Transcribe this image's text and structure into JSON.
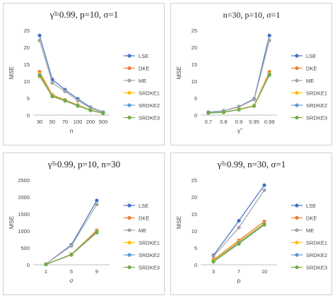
{
  "chart_data": [
    {
      "type": "line",
      "title": "γ̃=0.99, p=10, σ=1",
      "xlabel": "n",
      "ylabel": "MSE",
      "categories": [
        "30",
        "50",
        "70",
        "100",
        "200",
        "500"
      ],
      "ylim": [
        0,
        25
      ],
      "yticks": [
        0,
        5,
        10,
        15,
        20,
        25
      ],
      "grid": false,
      "legend": "right",
      "series": [
        {
          "name": "LSE",
          "color": "#4472C4",
          "values": [
            23.5,
            10.5,
            7.5,
            4.8,
            2.3,
            0.9
          ]
        },
        {
          "name": "DKE",
          "color": "#ED7D31",
          "values": [
            12.8,
            6.0,
            4.5,
            3.0,
            1.5,
            0.6
          ]
        },
        {
          "name": "ME",
          "color": "#A5A5A5",
          "values": [
            22.0,
            9.5,
            7.0,
            4.3,
            2.1,
            0.8
          ]
        },
        {
          "name": "SRDKE1",
          "color": "#FFC000",
          "values": [
            12.2,
            5.8,
            4.4,
            2.9,
            1.5,
            0.6
          ]
        },
        {
          "name": "SRDKE2",
          "color": "#5B9BD5",
          "values": [
            11.8,
            5.6,
            4.3,
            2.8,
            1.4,
            0.6
          ]
        },
        {
          "name": "SRDKE3",
          "color": "#70AD47",
          "values": [
            11.5,
            5.5,
            4.2,
            2.7,
            1.4,
            0.5
          ]
        }
      ]
    },
    {
      "type": "line",
      "title": "n=30, p=10, σ=1",
      "xlabel": "γ̃",
      "ylabel": "MSE",
      "categories": [
        "0.7",
        "0.8",
        "0.9",
        "0.95",
        "0.99"
      ],
      "ylim": [
        0,
        25
      ],
      "yticks": [
        0,
        5,
        10,
        15,
        20,
        25
      ],
      "grid": false,
      "legend": "right",
      "series": [
        {
          "name": "LSE",
          "color": "#4472C4",
          "values": [
            0.9,
            1.3,
            2.5,
            4.8,
            23.5
          ]
        },
        {
          "name": "DKE",
          "color": "#ED7D31",
          "values": [
            0.7,
            0.9,
            1.7,
            2.8,
            12.8
          ]
        },
        {
          "name": "ME",
          "color": "#A5A5A5",
          "values": [
            0.9,
            1.3,
            2.4,
            4.6,
            22.0
          ]
        },
        {
          "name": "SRDKE1",
          "color": "#FFC000",
          "values": [
            0.7,
            0.9,
            1.7,
            2.8,
            12.3
          ]
        },
        {
          "name": "SRDKE2",
          "color": "#5B9BD5",
          "values": [
            0.7,
            0.9,
            1.6,
            2.7,
            12.0
          ]
        },
        {
          "name": "SRDKE3",
          "color": "#70AD47",
          "values": [
            0.6,
            0.8,
            1.6,
            2.7,
            11.8
          ]
        }
      ]
    },
    {
      "type": "line",
      "title": "γ̃=0.99, p=10, n=30",
      "xlabel": "σ",
      "ylabel": "MSE",
      "categories": [
        "1",
        "5",
        "9"
      ],
      "ylim": [
        0,
        2500
      ],
      "yticks": [
        0,
        500,
        1000,
        1500,
        2000,
        2500
      ],
      "grid": false,
      "legend": "right",
      "series": [
        {
          "name": "LSE",
          "color": "#4472C4",
          "values": [
            23,
            590,
            1900
          ]
        },
        {
          "name": "DKE",
          "color": "#ED7D31",
          "values": [
            13,
            310,
            1020
          ]
        },
        {
          "name": "ME",
          "color": "#A5A5A5",
          "values": [
            22,
            560,
            1780
          ]
        },
        {
          "name": "SRDKE1",
          "color": "#FFC000",
          "values": [
            12,
            305,
            990
          ]
        },
        {
          "name": "SRDKE2",
          "color": "#5B9BD5",
          "values": [
            12,
            300,
            970
          ]
        },
        {
          "name": "SRDKE3",
          "color": "#70AD47",
          "values": [
            12,
            295,
            950
          ]
        }
      ]
    },
    {
      "type": "line",
      "title": "γ̃=0.99, n=30, σ=1",
      "xlabel": "p",
      "ylabel": "MSE",
      "categories": [
        "3",
        "7",
        "10"
      ],
      "ylim": [
        0,
        25
      ],
      "yticks": [
        0,
        5,
        10,
        15,
        20,
        25
      ],
      "grid": false,
      "legend": "right",
      "series": [
        {
          "name": "LSE",
          "color": "#4472C4",
          "values": [
            2.8,
            13.0,
            23.5
          ]
        },
        {
          "name": "DKE",
          "color": "#ED7D31",
          "values": [
            1.5,
            7.2,
            12.8
          ]
        },
        {
          "name": "ME",
          "color": "#A5A5A5",
          "values": [
            2.5,
            11.0,
            22.0
          ]
        },
        {
          "name": "SRDKE1",
          "color": "#FFC000",
          "values": [
            1.2,
            6.8,
            12.2
          ]
        },
        {
          "name": "SRDKE2",
          "color": "#5B9BD5",
          "values": [
            1.0,
            6.5,
            12.0
          ]
        },
        {
          "name": "SRDKE3",
          "color": "#70AD47",
          "values": [
            0.9,
            6.2,
            11.8
          ]
        }
      ]
    }
  ]
}
